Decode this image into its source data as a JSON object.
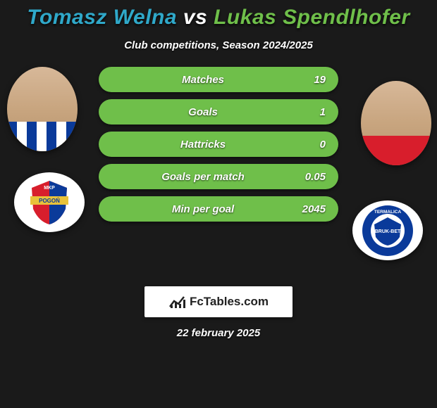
{
  "title": {
    "player1": "Tomasz Welna",
    "player1_color": "#2fa8c9",
    "vs": "vs",
    "vs_color": "#ffffff",
    "player2": "Lukas Spendlhofer",
    "player2_color": "#6fbf4a"
  },
  "subtitle": "Club competitions, Season 2024/2025",
  "date": "22 february 2025",
  "stat_row_bg": "#6fbf4a",
  "stats": [
    {
      "label": "Matches",
      "value": "19"
    },
    {
      "label": "Goals",
      "value": "1"
    },
    {
      "label": "Hattricks",
      "value": "0"
    },
    {
      "label": "Goals per match",
      "value": "0.05"
    },
    {
      "label": "Min per goal",
      "value": "2045"
    }
  ],
  "brand": "FcTables.com",
  "brand_text_color": "#222222",
  "club_left": {
    "name": "MKP Pogoń Siedlce",
    "crest_colors": {
      "top": "#d81e2c",
      "bottom": "#0a3a9a",
      "ribbon": "#e8c23a"
    }
  },
  "club_right": {
    "name": "Termalica Bruk-Bet Nieciecza",
    "crest_colors": {
      "ring": "#0a3a9a",
      "inner": "#ffffff"
    }
  },
  "portraits": {
    "left_jersey": "blue-white-stripes",
    "right_jersey": "red"
  }
}
